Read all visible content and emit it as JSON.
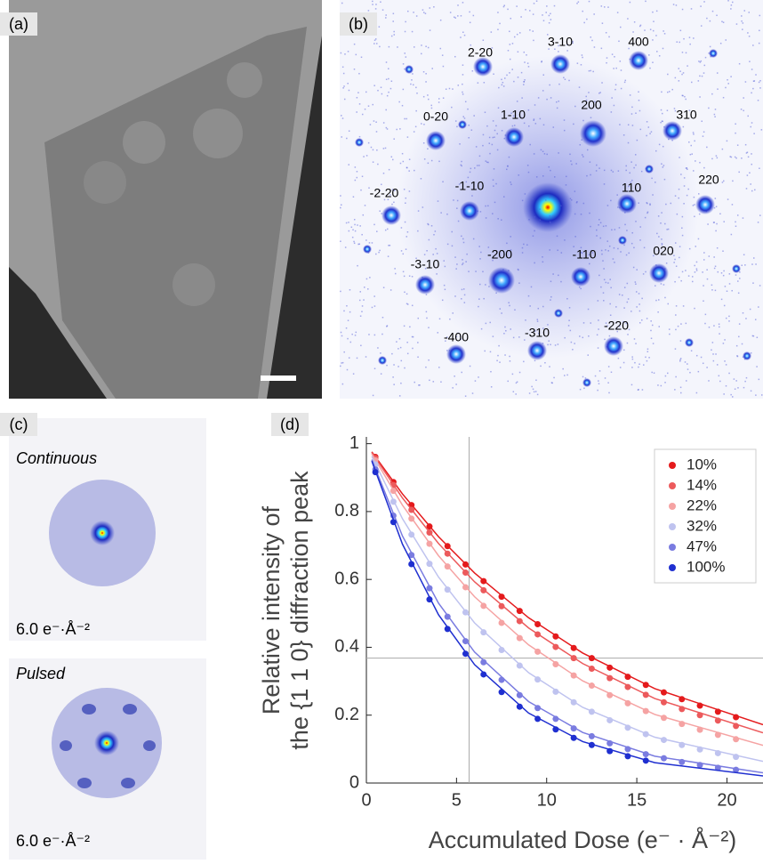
{
  "panel_a": {
    "label": "(a)"
  },
  "panel_b": {
    "label": "(b)",
    "spot_labels": [
      "2-20",
      "3-10",
      "400",
      "0-20",
      "1-10",
      "200",
      "310",
      "-2-20",
      "-1-10",
      "110",
      "220",
      "-3-10",
      "-200",
      "-110",
      "020",
      "-400",
      "-310",
      "-220"
    ]
  },
  "panel_c": {
    "label": "(c)",
    "top_title": "Continuous",
    "top_dose": "6.0 e⁻·Å⁻²",
    "bottom_title": "Pulsed",
    "bottom_dose": "6.0 e⁻·Å⁻²"
  },
  "chart_data": {
    "type": "scatter",
    "label": "(d)",
    "xlabel": "Accumulated Dose  (e⁻ · Å⁻²)",
    "ylabel": [
      "Relative intensity of",
      "the {1 1 0} diffraction peak"
    ],
    "xlim": [
      0,
      22
    ],
    "ylim": [
      0,
      1.02
    ],
    "xticks": [
      0,
      5,
      10,
      15,
      20
    ],
    "yticks": [
      0,
      0.2,
      0.4,
      0.6,
      0.8,
      1
    ],
    "legend": "upper right",
    "reference_lines": {
      "x": 5.7,
      "y": 0.368
    },
    "x": [
      0.5,
      1.5,
      2.5,
      3.5,
      4.5,
      5.5,
      6.5,
      7.5,
      8.5,
      9.5,
      10.5,
      11.5,
      12.5,
      13.5,
      14.5,
      15.5,
      16.5,
      17.5,
      18.5,
      19.5,
      20.5
    ],
    "fit_x": [
      0.3,
      2,
      4,
      6,
      9,
      12,
      16,
      22
    ],
    "series": [
      {
        "name": "10%",
        "color": "#e41a1c",
        "values": [
          0.961,
          0.887,
          0.819,
          0.756,
          0.698,
          0.644,
          0.595,
          0.549,
          0.507,
          0.468,
          0.432,
          0.398,
          0.368,
          0.34,
          0.313,
          0.289,
          0.267,
          0.247,
          0.228,
          0.21,
          0.194
        ],
        "fit": [
          0.976,
          0.852,
          0.726,
          0.619,
          0.487,
          0.383,
          0.278,
          0.172
        ]
      },
      {
        "name": "14%",
        "color": "#ec5a5c",
        "values": [
          0.957,
          0.878,
          0.805,
          0.738,
          0.676,
          0.62,
          0.568,
          0.521,
          0.477,
          0.438,
          0.401,
          0.368,
          0.337,
          0.309,
          0.283,
          0.26,
          0.238,
          0.218,
          0.2,
          0.184,
          0.168
        ],
        "fit": [
          0.974,
          0.84,
          0.706,
          0.593,
          0.457,
          0.352,
          0.249,
          0.148
        ]
      },
      {
        "name": "22%",
        "color": "#f5a3a3",
        "values": [
          0.951,
          0.861,
          0.779,
          0.705,
          0.638,
          0.577,
          0.522,
          0.472,
          0.427,
          0.387,
          0.35,
          0.317,
          0.287,
          0.259,
          0.235,
          0.212,
          0.192,
          0.174,
          0.157,
          0.142,
          0.129
        ],
        "fit": [
          0.97,
          0.819,
          0.67,
          0.549,
          0.407,
          0.301,
          0.202,
          0.111
        ]
      },
      {
        "name": "32%",
        "color": "#bfc3ef",
        "values": [
          0.939,
          0.829,
          0.732,
          0.646,
          0.57,
          0.503,
          0.444,
          0.392,
          0.346,
          0.305,
          0.269,
          0.238,
          0.21,
          0.185,
          0.163,
          0.144,
          0.127,
          0.112,
          0.099,
          0.088,
          0.077
        ],
        "fit": [
          0.963,
          0.779,
          0.607,
          0.472,
          0.325,
          0.223,
          0.135,
          0.064
        ]
      },
      {
        "name": "47%",
        "color": "#7a7ce0",
        "values": [
          0.924,
          0.788,
          0.672,
          0.574,
          0.49,
          0.418,
          0.356,
          0.304,
          0.259,
          0.221,
          0.189,
          0.161,
          0.138,
          0.117,
          0.1,
          0.085,
          0.073,
          0.062,
          0.053,
          0.045,
          0.039
        ],
        "fit": [
          0.953,
          0.728,
          0.53,
          0.386,
          0.24,
          0.149,
          0.079,
          0.03
        ]
      },
      {
        "name": "100%",
        "color": "#1f2fd0",
        "values": [
          0.916,
          0.769,
          0.645,
          0.541,
          0.454,
          0.381,
          0.32,
          0.268,
          0.225,
          0.189,
          0.158,
          0.133,
          0.112,
          0.094,
          0.079,
          0.066,
          null,
          null,
          null,
          null,
          null
        ],
        "fit": [
          0.949,
          0.704,
          0.496,
          0.349,
          0.206,
          0.122,
          0.06,
          0.021
        ]
      }
    ]
  }
}
